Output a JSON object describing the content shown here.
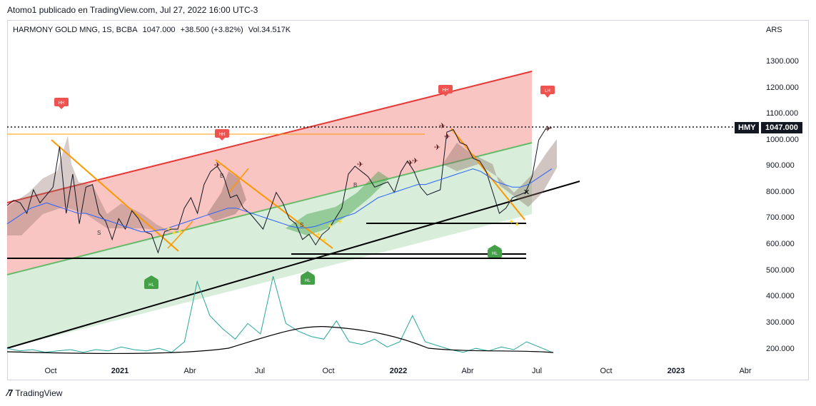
{
  "header": {
    "published": "Atomo1 publicado en TradingView.com, Jul 27, 2022 16:00 UTC-3"
  },
  "symbol": {
    "name": "HARMONY GOLD MNG, 1S, BCBA",
    "close": "1047.000",
    "change": "+38.500 (+3.82%)",
    "volume": "Vol.34.517K"
  },
  "axis": {
    "currency": "ARS",
    "price_ticks": [
      "1300.000",
      "1200.000",
      "1100.000",
      "1000.000",
      "900.000",
      "800.000",
      "700.000",
      "600.000",
      "500.000",
      "400.000",
      "300.000",
      "200.000"
    ],
    "time_ticks": [
      {
        "label": "Oct",
        "year": false
      },
      {
        "label": "2021",
        "year": true
      },
      {
        "label": "Abr",
        "year": false
      },
      {
        "label": "Jul",
        "year": false
      },
      {
        "label": "Oct",
        "year": false
      },
      {
        "label": "2022",
        "year": true
      },
      {
        "label": "Abr",
        "year": false
      },
      {
        "label": "Jul",
        "year": false
      },
      {
        "label": "Oct",
        "year": false
      },
      {
        "label": "2023",
        "year": true
      },
      {
        "label": "Abr",
        "year": false
      }
    ]
  },
  "last_price": {
    "ticker": "HMY",
    "value": "1047.000"
  },
  "footer": {
    "brand": "TradingView"
  },
  "chart_data": {
    "type": "line",
    "ylim": [
      180,
      1350
    ],
    "series": [
      {
        "values": [
          750,
          770,
          760,
          720,
          810,
          760,
          790,
          820,
          975,
          720,
          870,
          680,
          820,
          830,
          720,
          690,
          620,
          700,
          660,
          730,
          700,
          650,
          640,
          570,
          650,
          660,
          660,
          740,
          780,
          720,
          830,
          880,
          900,
          860,
          780,
          790,
          740,
          720,
          690,
          660,
          730,
          800,
          760,
          700,
          680,
          620,
          640,
          600,
          640,
          660,
          700,
          740,
          870,
          900,
          880,
          860,
          820,
          830,
          840,
          800,
          880,
          920,
          880,
          820,
          790,
          800,
          810,
          1030,
          1040,
          990,
          980,
          930,
          920,
          880,
          800,
          720,
          740,
          780,
          790,
          800,
          860,
          1000,
          1040,
          1047
        ]
      },
      {
        "values": [
          680,
          700,
          720,
          740,
          750,
          760,
          750,
          740,
          730,
          720,
          720,
          710,
          700,
          690,
          680,
          670,
          660,
          650,
          650,
          655,
          660,
          670,
          680,
          690,
          700,
          710,
          720,
          730,
          740,
          740,
          730,
          720,
          710,
          700,
          690,
          680,
          670,
          665,
          665,
          670,
          680,
          690,
          700,
          710,
          720,
          740,
          760,
          780,
          790,
          800,
          810,
          820,
          830,
          830,
          840,
          850,
          860,
          870,
          880,
          890,
          880,
          860,
          840,
          830,
          820,
          820,
          830,
          850,
          870,
          890
        ],
        "color": "#2962ff"
      },
      {
        "values": [
          205,
          195,
          200,
          190,
          195,
          200,
          190,
          200,
          195,
          210,
          200,
          195,
          205,
          190,
          230,
          460,
          330,
          280,
          240,
          300,
          260,
          480,
          300,
          270,
          250,
          240,
          310,
          230,
          220,
          240,
          210,
          230,
          330,
          230,
          215,
          200,
          190,
          205,
          195,
          210,
          200,
          230,
          210,
          190
        ],
        "color": "#26a69a"
      }
    ],
    "annotations": [
      "HH",
      "HH",
      "HH",
      "LH",
      "HL",
      "HL",
      "HL",
      "S",
      "S",
      "B",
      "B"
    ],
    "grid": false
  }
}
